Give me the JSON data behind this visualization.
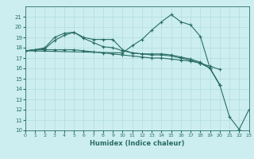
{
  "series": [
    {
      "x": [
        0,
        1,
        2,
        3,
        4,
        5,
        6,
        7,
        8,
        9,
        10,
        11,
        12,
        13,
        14,
        15,
        16,
        17,
        18,
        19,
        20
      ],
      "y": [
        17.7,
        17.8,
        17.8,
        17.8,
        17.8,
        17.8,
        17.7,
        17.6,
        17.5,
        17.4,
        17.3,
        17.2,
        17.1,
        17.0,
        17.0,
        16.9,
        16.8,
        16.7,
        16.5,
        16.2,
        15.9
      ]
    },
    {
      "x": [
        0,
        1,
        2,
        3,
        4,
        5,
        6,
        7,
        8,
        9,
        10,
        11,
        12,
        13,
        14,
        15,
        16,
        17,
        18,
        19,
        20
      ],
      "y": [
        17.7,
        17.8,
        17.9,
        18.7,
        19.2,
        19.5,
        18.9,
        18.5,
        18.1,
        18.0,
        17.7,
        17.5,
        17.4,
        17.3,
        17.3,
        17.2,
        17.0,
        16.8,
        16.5,
        16.0,
        14.4
      ]
    },
    {
      "x": [
        0,
        1,
        2,
        3,
        4,
        5,
        6,
        7,
        8,
        9,
        10,
        11,
        12,
        13,
        14,
        15,
        16,
        17,
        18,
        19,
        20
      ],
      "y": [
        17.7,
        17.8,
        18.0,
        19.0,
        19.4,
        19.5,
        19.0,
        18.8,
        18.8,
        18.8,
        17.8,
        17.5,
        17.4,
        17.4,
        17.4,
        17.3,
        17.1,
        16.9,
        16.6,
        16.0,
        14.4
      ]
    },
    {
      "x": [
        0,
        10,
        11,
        12,
        13,
        14,
        15,
        16,
        17,
        18,
        19,
        20,
        21,
        22,
        23
      ],
      "y": [
        17.7,
        17.5,
        18.2,
        18.8,
        19.7,
        20.5,
        21.2,
        20.5,
        20.2,
        19.1,
        16.0,
        14.4,
        11.3,
        10.1,
        12.0
      ]
    }
  ],
  "color": "#2a6e63",
  "bg_color": "#cceef0",
  "grid_color": "#aad8dc",
  "xlabel": "Humidex (Indice chaleur)",
  "xlim": [
    0,
    23
  ],
  "ylim": [
    10,
    22
  ],
  "yticks": [
    10,
    11,
    12,
    13,
    14,
    15,
    16,
    17,
    18,
    19,
    20,
    21
  ],
  "xticks": [
    0,
    1,
    2,
    3,
    4,
    5,
    6,
    7,
    8,
    9,
    10,
    11,
    12,
    13,
    14,
    15,
    16,
    17,
    18,
    19,
    20,
    21,
    22,
    23
  ],
  "marker": "+",
  "markersize": 3,
  "linewidth": 0.8
}
